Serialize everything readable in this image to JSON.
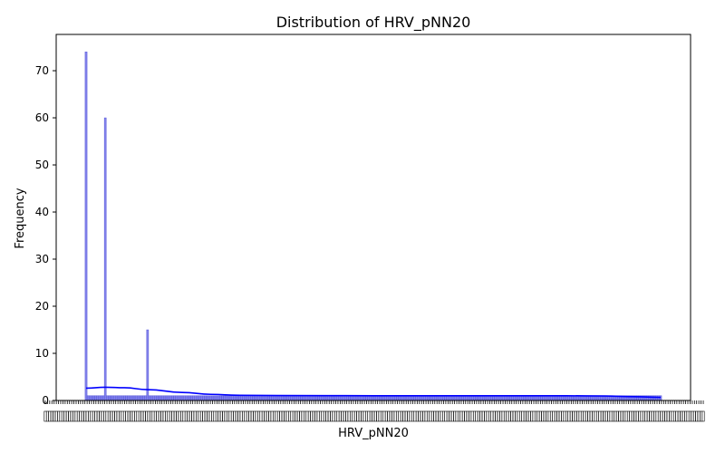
{
  "chart_data": {
    "type": "bar",
    "title": "Distribution of HRV_pNN20",
    "xlabel": "HRV_pNN20",
    "ylabel": "Frequency",
    "ylim": [
      0,
      77.7
    ],
    "yticks": [
      0,
      10,
      20,
      30,
      40,
      50,
      60,
      70
    ],
    "grid": false,
    "legend": "none",
    "category_count": 300,
    "bar_color": "#6b6be6",
    "bar_edge_color": "#4a4ad8",
    "kde_color": "#0000ff",
    "spikes": [
      {
        "index": 0,
        "value": 74
      },
      {
        "index": 10,
        "value": 60
      },
      {
        "index": 32,
        "value": 15
      }
    ],
    "baseline_value": 1,
    "kde": {
      "x_index": [
        0,
        10,
        20,
        32,
        50,
        65,
        80,
        100,
        150,
        200,
        250,
        270,
        285,
        299
      ],
      "y": [
        2.6,
        2.8,
        2.7,
        2.3,
        1.7,
        1.3,
        1.1,
        1.05,
        1.0,
        1.0,
        1.0,
        0.95,
        0.8,
        0.65
      ]
    }
  }
}
